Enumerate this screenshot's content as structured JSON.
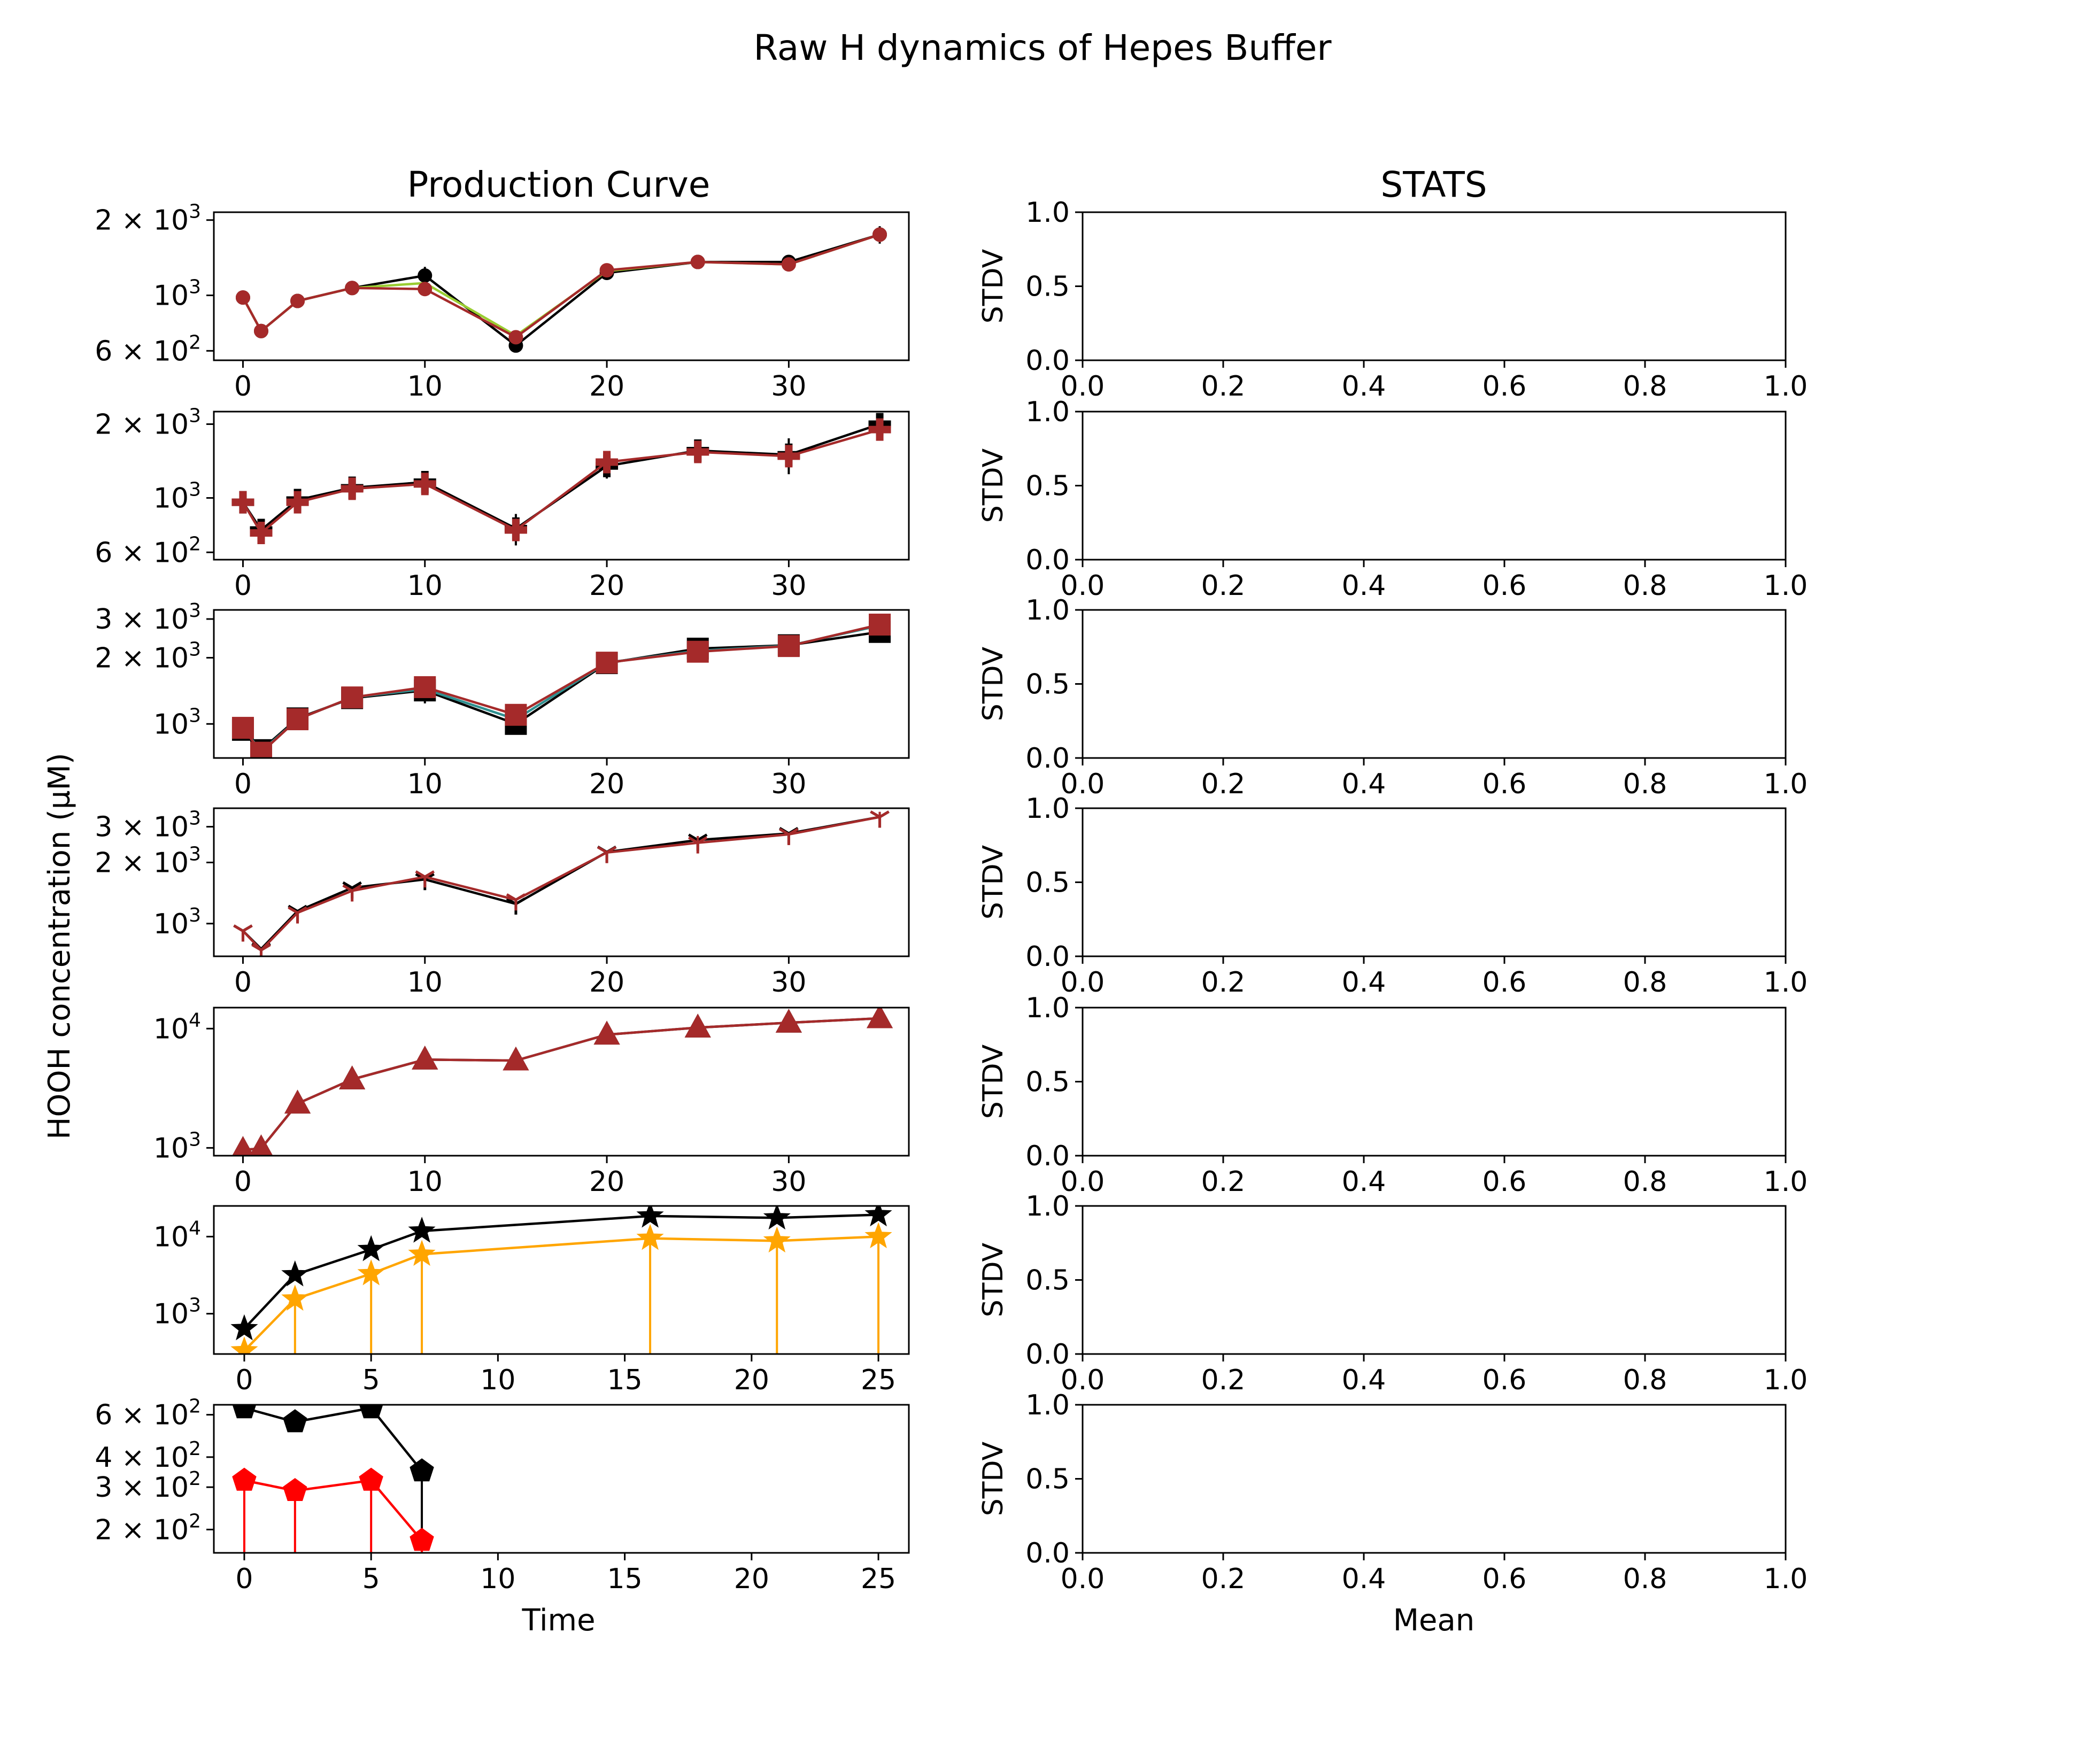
{
  "suptitle": "Raw H dynamics of Hepes Buffer",
  "left_title": "Production Curve",
  "right_title": "STATS",
  "left_ylabel": "HOOH concentration (µM)",
  "left_xlabel": "Time",
  "right_xlabel": "Mean",
  "right_ylabel": "STDV",
  "colors": {
    "black": "#000000",
    "brown": "#a52a2a",
    "green": "#9acd32",
    "teal": "#2f8f8f",
    "orange": "#ffa500",
    "red": "#ff0000"
  },
  "chart_data": [
    {
      "type": "line",
      "panel": "production-curve-1",
      "yscale": "log",
      "xlim": [
        -1.6,
        36.6
      ],
      "ylim": [
        550,
        2150
      ],
      "xticks": [
        0,
        10,
        20,
        30
      ],
      "yticks": [
        {
          "value": 600,
          "label": "6 × 10",
          "exp": "2"
        },
        {
          "value": 1000,
          "label": "10",
          "exp": "3"
        },
        {
          "value": 2000,
          "label": "2 × 10",
          "exp": "3"
        }
      ],
      "series": [
        {
          "color": "black",
          "marker": "circle",
          "x": [
            0,
            1,
            3,
            6,
            10,
            15,
            20,
            25,
            30,
            35
          ],
          "y": [
            980,
            720,
            950,
            1070,
            1200,
            630,
            1230,
            1360,
            1360,
            1750
          ],
          "err": [
            0,
            0,
            0,
            0,
            100,
            0,
            40,
            0,
            40,
            140
          ]
        },
        {
          "color": "green",
          "marker": "none",
          "x": [
            0,
            1,
            3,
            6,
            10,
            15,
            20,
            25,
            30,
            35
          ],
          "y": [
            980,
            720,
            950,
            1070,
            1120,
            690,
            1250,
            1360,
            1330,
            1750
          ],
          "err": []
        },
        {
          "color": "brown",
          "marker": "circle",
          "x": [
            0,
            1,
            3,
            6,
            10,
            15,
            20,
            25,
            30,
            35
          ],
          "y": [
            980,
            720,
            950,
            1070,
            1060,
            680,
            1260,
            1360,
            1330,
            1750
          ],
          "err": [
            0,
            0,
            0,
            0,
            0,
            0,
            30,
            0,
            30,
            120
          ]
        }
      ]
    },
    {
      "type": "line",
      "panel": "production-curve-2",
      "yscale": "log",
      "xlim": [
        -1.6,
        36.6
      ],
      "ylim": [
        560,
        2250
      ],
      "xticks": [
        0,
        10,
        20,
        30
      ],
      "yticks": [
        {
          "value": 600,
          "label": "6 × 10",
          "exp": "2"
        },
        {
          "value": 1000,
          "label": "10",
          "exp": "3"
        },
        {
          "value": 2000,
          "label": "2 × 10",
          "exp": "3"
        }
      ],
      "series": [
        {
          "color": "black",
          "marker": "plus",
          "x": [
            0,
            1,
            3,
            6,
            10,
            15,
            20,
            25,
            30,
            35
          ],
          "y": [
            960,
            740,
            980,
            1100,
            1160,
            750,
            1350,
            1560,
            1500,
            2000
          ],
          "err": [
            0,
            0,
            60,
            80,
            90,
            110,
            150,
            120,
            250,
            150
          ]
        },
        {
          "color": "brown",
          "marker": "plus",
          "x": [
            0,
            1,
            3,
            6,
            10,
            15,
            20,
            25,
            30,
            35
          ],
          "y": [
            960,
            720,
            960,
            1090,
            1140,
            740,
            1400,
            1540,
            1480,
            1900
          ],
          "err": [
            0,
            0,
            0,
            0,
            0,
            0,
            0,
            0,
            0,
            130
          ]
        }
      ]
    },
    {
      "type": "line",
      "panel": "production-curve-3",
      "yscale": "log",
      "xlim": [
        -1.6,
        36.6
      ],
      "ylim": [
        700,
        3300
      ],
      "xticks": [
        0,
        10,
        20,
        30
      ],
      "yticks": [
        {
          "value": 1000,
          "label": "10",
          "exp": "3"
        },
        {
          "value": 2000,
          "label": "2 × 10",
          "exp": "3"
        },
        {
          "value": 3000,
          "label": "3 × 10",
          "exp": "3"
        }
      ],
      "series": [
        {
          "color": "black",
          "marker": "square",
          "x": [
            0,
            1,
            3,
            6,
            10,
            15,
            20,
            25,
            30,
            35
          ],
          "y": [
            940,
            760,
            1060,
            1310,
            1420,
            1000,
            1890,
            2200,
            2280,
            2620
          ],
          "err": [
            0,
            0,
            0,
            0,
            180,
            0,
            0,
            0,
            0,
            0
          ]
        },
        {
          "color": "teal",
          "marker": "none",
          "x": [
            0,
            1,
            3,
            6,
            10,
            15,
            20,
            25,
            30,
            35
          ],
          "y": [
            960,
            750,
            1050,
            1320,
            1440,
            1050,
            1900,
            2150,
            2270,
            2800
          ],
          "err": []
        },
        {
          "color": "brown",
          "marker": "square",
          "x": [
            0,
            1,
            3,
            6,
            10,
            15,
            20,
            25,
            30,
            35
          ],
          "y": [
            960,
            740,
            1050,
            1320,
            1470,
            1100,
            1900,
            2130,
            2260,
            2830
          ],
          "err": [
            0,
            0,
            0,
            0,
            0,
            0,
            0,
            0,
            0,
            0
          ]
        }
      ]
    },
    {
      "type": "line",
      "panel": "production-curve-4",
      "yscale": "log",
      "xlim": [
        -1.6,
        36.6
      ],
      "ylim": [
        690,
        3700
      ],
      "xticks": [
        0,
        10,
        20,
        30
      ],
      "yticks": [
        {
          "value": 1000,
          "label": "10",
          "exp": "3"
        },
        {
          "value": 2000,
          "label": "2 × 10",
          "exp": "3"
        },
        {
          "value": 3000,
          "label": "3 × 10",
          "exp": "3"
        }
      ],
      "series": [
        {
          "color": "black",
          "marker": "tri",
          "x": [
            0,
            1,
            3,
            6,
            10,
            15,
            20,
            25,
            30,
            35
          ],
          "y": [
            920,
            750,
            1150,
            1500,
            1650,
            1250,
            2250,
            2580,
            2780,
            3350
          ],
          "err": [
            0,
            0,
            0,
            0,
            0,
            0,
            0,
            0,
            0,
            200
          ]
        },
        {
          "color": "brown",
          "marker": "tri",
          "x": [
            0,
            1,
            3,
            6,
            10,
            15,
            20,
            25,
            30,
            35
          ],
          "y": [
            920,
            740,
            1130,
            1450,
            1700,
            1310,
            2240,
            2500,
            2750,
            3350
          ],
          "err": [
            0,
            0,
            0,
            0,
            0,
            0,
            0,
            200,
            0,
            200
          ]
        }
      ]
    },
    {
      "type": "line",
      "panel": "production-curve-5",
      "yscale": "log",
      "xlim": [
        -1.6,
        36.6
      ],
      "ylim": [
        860,
        15000
      ],
      "xticks": [
        0,
        10,
        20,
        30
      ],
      "yticks": [
        {
          "value": 1000,
          "label": "10",
          "exp": "3"
        },
        {
          "value": 10000,
          "label": "10",
          "exp": "4"
        }
      ],
      "series": [
        {
          "color": "black",
          "marker": "triangle",
          "x": [
            0,
            1,
            3,
            6,
            10,
            15,
            20,
            25,
            30,
            35
          ],
          "y": [
            960,
            990,
            2350,
            3750,
            5500,
            5400,
            8900,
            10200,
            11200,
            12200
          ],
          "err": []
        },
        {
          "color": "brown",
          "marker": "triangle",
          "x": [
            0,
            1,
            3,
            6,
            10,
            15,
            20,
            25,
            30,
            35
          ],
          "y": [
            960,
            990,
            2350,
            3750,
            5500,
            5400,
            8900,
            10200,
            11200,
            12200
          ],
          "err": []
        }
      ]
    },
    {
      "type": "line",
      "panel": "production-curve-6",
      "yscale": "log",
      "xlim": [
        -1.2,
        26.2
      ],
      "ylim": [
        300,
        25000
      ],
      "xticks": [
        0,
        5,
        10,
        15,
        20,
        25
      ],
      "yticks": [
        {
          "value": 1000,
          "label": "10",
          "exp": "3"
        },
        {
          "value": 10000,
          "label": "10",
          "exp": "4"
        }
      ],
      "series": [
        {
          "color": "black",
          "marker": "star",
          "x": [
            0,
            2,
            5,
            7,
            16,
            21,
            25
          ],
          "y": [
            640,
            3200,
            6800,
            11800,
            18500,
            17500,
            19200
          ],
          "err": []
        },
        {
          "color": "orange",
          "marker": "star",
          "x": [
            0,
            2,
            5,
            7,
            16,
            21,
            25
          ],
          "y": [
            330,
            1550,
            3300,
            5900,
            9500,
            8800,
            10000
          ],
          "err": "down"
        }
      ]
    },
    {
      "type": "line",
      "panel": "production-curve-7",
      "yscale": "log",
      "xlim": [
        -1.2,
        26.2
      ],
      "ylim": [
        160,
        660
      ],
      "xticks": [
        0,
        5,
        10,
        15,
        20,
        25
      ],
      "yticks": [
        {
          "value": 200,
          "label": "2 × 10",
          "exp": "2"
        },
        {
          "value": 300,
          "label": "3 × 10",
          "exp": "2"
        },
        {
          "value": 400,
          "label": "4 × 10",
          "exp": "2"
        },
        {
          "value": 600,
          "label": "6 × 10",
          "exp": "2"
        }
      ],
      "series": [
        {
          "color": "black",
          "marker": "pentagon",
          "x": [
            0,
            2,
            5,
            7
          ],
          "y": [
            640,
            560,
            640,
            350
          ],
          "err": [
            0,
            0,
            0,
            "down"
          ]
        },
        {
          "color": "red",
          "marker": "pentagon",
          "x": [
            0,
            2,
            5,
            7
          ],
          "y": [
            320,
            290,
            320,
            180
          ],
          "err": "down"
        }
      ]
    },
    {
      "type": "scatter",
      "panel": "stats-1",
      "xlim": [
        0,
        1
      ],
      "ylim": [
        0,
        1
      ],
      "xticks": [
        "0.0",
        "0.2",
        "0.4",
        "0.6",
        "0.8",
        "1.0"
      ],
      "yticks": [
        "0.0",
        "0.5",
        "1.0"
      ],
      "series": []
    },
    {
      "type": "scatter",
      "panel": "stats-2",
      "xlim": [
        0,
        1
      ],
      "ylim": [
        0,
        1
      ],
      "xticks": [
        "0.0",
        "0.2",
        "0.4",
        "0.6",
        "0.8",
        "1.0"
      ],
      "yticks": [
        "0.0",
        "0.5",
        "1.0"
      ],
      "series": []
    },
    {
      "type": "scatter",
      "panel": "stats-3",
      "xlim": [
        0,
        1
      ],
      "ylim": [
        0,
        1
      ],
      "xticks": [
        "0.0",
        "0.2",
        "0.4",
        "0.6",
        "0.8",
        "1.0"
      ],
      "yticks": [
        "0.0",
        "0.5",
        "1.0"
      ],
      "series": []
    },
    {
      "type": "scatter",
      "panel": "stats-4",
      "xlim": [
        0,
        1
      ],
      "ylim": [
        0,
        1
      ],
      "xticks": [
        "0.0",
        "0.2",
        "0.4",
        "0.6",
        "0.8",
        "1.0"
      ],
      "yticks": [
        "0.0",
        "0.5",
        "1.0"
      ],
      "series": []
    },
    {
      "type": "scatter",
      "panel": "stats-5",
      "xlim": [
        0,
        1
      ],
      "ylim": [
        0,
        1
      ],
      "xticks": [
        "0.0",
        "0.2",
        "0.4",
        "0.6",
        "0.8",
        "1.0"
      ],
      "yticks": [
        "0.0",
        "0.5",
        "1.0"
      ],
      "series": []
    },
    {
      "type": "scatter",
      "panel": "stats-6",
      "xlim": [
        0,
        1
      ],
      "ylim": [
        0,
        1
      ],
      "xticks": [
        "0.0",
        "0.2",
        "0.4",
        "0.6",
        "0.8",
        "1.0"
      ],
      "yticks": [
        "0.0",
        "0.5",
        "1.0"
      ],
      "series": []
    },
    {
      "type": "scatter",
      "panel": "stats-7",
      "xlim": [
        0,
        1
      ],
      "ylim": [
        0,
        1
      ],
      "xticks": [
        "0.0",
        "0.2",
        "0.4",
        "0.6",
        "0.8",
        "1.0"
      ],
      "yticks": [
        "0.0",
        "0.5",
        "1.0"
      ],
      "series": []
    }
  ]
}
